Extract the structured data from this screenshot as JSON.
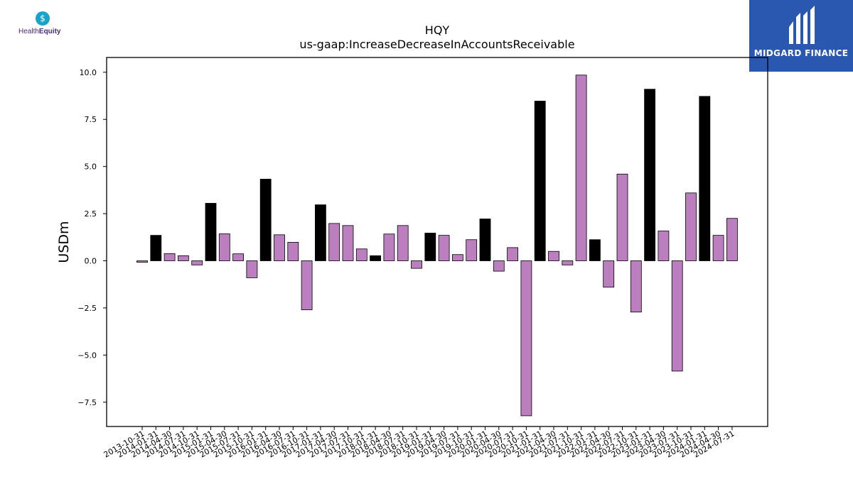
{
  "logos": {
    "left": {
      "name": "HealthEquity",
      "text_plain": "Health",
      "text_bold": "Equity"
    },
    "right": {
      "name": "MIDGARD FINANCE"
    }
  },
  "chart_data": {
    "type": "bar",
    "title": "HQY",
    "subtitle": "us-gaap:IncreaseDecreaseInAccountsReceivable",
    "ylabel": "USDm",
    "xlabel": "",
    "ylim": [
      -8.8,
      10.8
    ],
    "yticks": [
      -7.5,
      -5.0,
      -2.5,
      0.0,
      2.5,
      5.0,
      7.5,
      10.0
    ],
    "ytick_labels": [
      "−7.5",
      "−5.0",
      "−2.5",
      "0.0",
      "2.5",
      "5.0",
      "7.5",
      "10.0"
    ],
    "colors": {
      "quarter": "#bb7fbf",
      "annual": "#000000",
      "edge": "#000000"
    },
    "categories": [
      "2013-10-31",
      "2014-01-31",
      "2014-04-30",
      "2014-07-31",
      "2014-10-31",
      "2015-01-31",
      "2015-04-30",
      "2015-07-31",
      "2015-10-31",
      "2016-01-31",
      "2016-04-30",
      "2016-07-31",
      "2016-10-31",
      "2017-01-31",
      "2017-04-30",
      "2017-07-31",
      "2017-10-31",
      "2018-01-31",
      "2018-04-30",
      "2018-07-31",
      "2018-10-31",
      "2019-01-31",
      "2019-04-30",
      "2019-07-31",
      "2019-10-31",
      "2020-01-31",
      "2020-04-30",
      "2020-07-31",
      "2020-10-31",
      "2021-01-31",
      "2021-04-30",
      "2021-07-31",
      "2021-10-31",
      "2022-01-31",
      "2022-04-30",
      "2022-07-31",
      "2022-10-31",
      "2023-01-31",
      "2023-04-30",
      "2023-07-31",
      "2023-10-31",
      "2024-01-31",
      "2024-04-30",
      "2024-07-31"
    ],
    "values": [
      -0.08,
      1.35,
      0.38,
      0.27,
      -0.22,
      3.05,
      1.43,
      0.37,
      -0.9,
      4.33,
      1.38,
      0.98,
      -2.6,
      2.97,
      1.98,
      1.87,
      0.63,
      0.27,
      1.42,
      1.87,
      -0.4,
      1.47,
      1.35,
      0.33,
      1.12,
      2.22,
      -0.55,
      0.7,
      -8.22,
      8.47,
      0.5,
      -0.22,
      9.85,
      1.12,
      -1.4,
      4.6,
      -2.72,
      9.1,
      1.58,
      -5.85,
      3.6,
      8.72,
      1.35,
      2.25
    ],
    "annual": [
      false,
      true,
      false,
      false,
      false,
      true,
      false,
      false,
      false,
      true,
      false,
      false,
      false,
      true,
      false,
      false,
      false,
      true,
      false,
      false,
      false,
      true,
      false,
      false,
      false,
      true,
      false,
      false,
      false,
      true,
      false,
      false,
      false,
      true,
      false,
      false,
      false,
      true,
      false,
      false,
      false,
      true,
      false,
      false
    ]
  }
}
